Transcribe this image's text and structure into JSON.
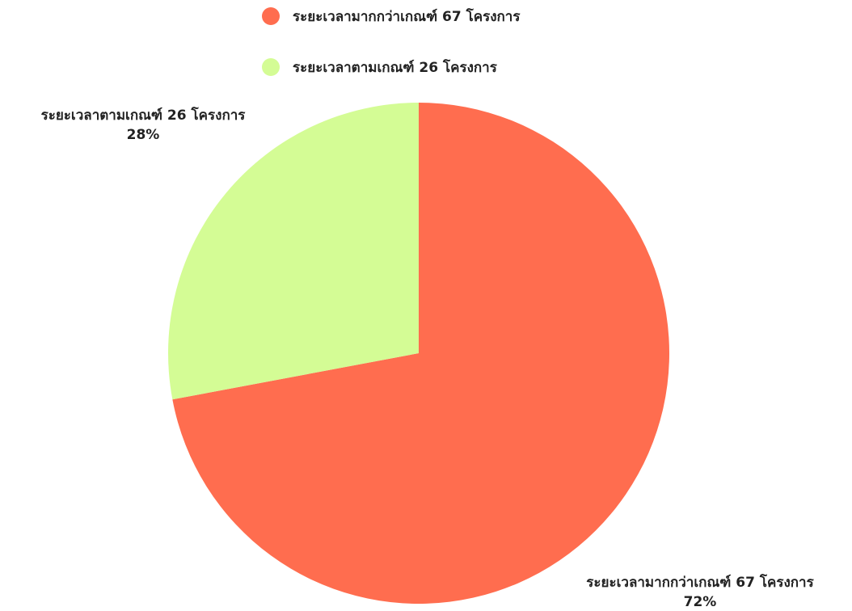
{
  "chart_data": {
    "type": "pie",
    "title": "",
    "legend_position": "top",
    "slices": [
      {
        "label": "ระยะเวลามากกว่าเกณฑ์ 67 โครงการ",
        "value": 67,
        "percent_label": "72%",
        "color": "#ff6d4f"
      },
      {
        "label": "ระยะเวลาตามเกณฑ์ 26 โครงการ",
        "value": 26,
        "percent_label": "28%",
        "color": "#d4fc95"
      }
    ]
  }
}
